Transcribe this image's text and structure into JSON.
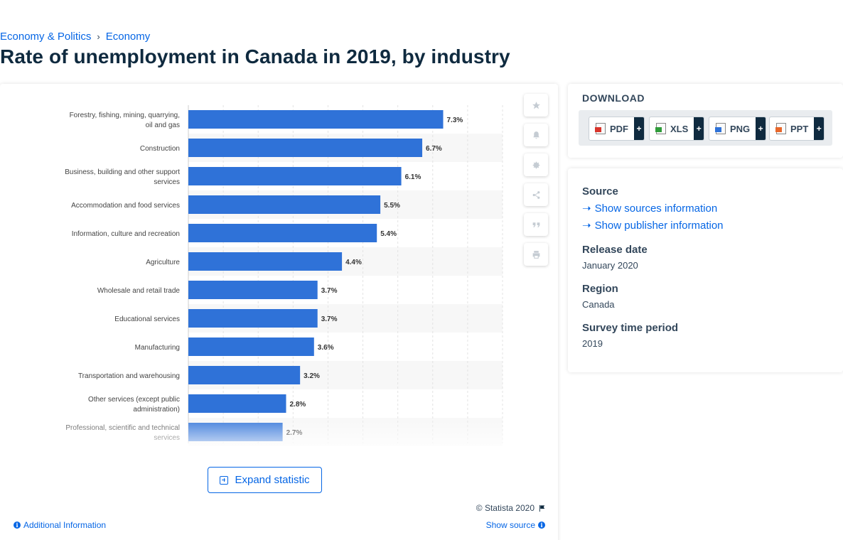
{
  "breadcrumb": {
    "items": [
      "Economy & Politics",
      "Economy"
    ],
    "separator": "›"
  },
  "page_title": "Rate of unemployment in Canada in 2019, by industry",
  "chart_data": {
    "type": "bar",
    "orientation": "horizontal",
    "categories": [
      "Forestry, fishing, mining, quarrying, oil and gas",
      "Construction",
      "Business, building and other support services",
      "Accommodation and food services",
      "Information, culture and recreation",
      "Agriculture",
      "Wholesale and retail trade",
      "Educational services",
      "Manufacturing",
      "Transportation and warehousing",
      "Other services (except public administration)",
      "Professional, scientific and technical services"
    ],
    "values": [
      7.3,
      6.7,
      6.1,
      5.5,
      5.4,
      4.4,
      3.7,
      3.7,
      3.6,
      3.2,
      2.8,
      2.7
    ],
    "value_labels": [
      "7.3%",
      "6.7%",
      "6.1%",
      "5.5%",
      "5.4%",
      "4.4%",
      "3.7%",
      "3.7%",
      "3.6%",
      "3.2%",
      "2.8%",
      "2.7%"
    ],
    "xlim": [
      0,
      9
    ],
    "bar_color": "#2f72d8",
    "grid": true
  },
  "tools": [
    "favorite-icon",
    "notification-icon",
    "settings-icon",
    "share-icon",
    "cite-icon",
    "print-icon"
  ],
  "expand_label": "Expand statistic",
  "copyright": "© Statista 2020",
  "additional_info": "Additional Information",
  "show_source": "Show source",
  "download": {
    "title": "DOWNLOAD",
    "formats": [
      {
        "label": "PDF",
        "color": "#d9342b"
      },
      {
        "label": "XLS",
        "color": "#2f9c3a"
      },
      {
        "label": "PNG",
        "color": "#2f72d8"
      },
      {
        "label": "PPT",
        "color": "#e8672a"
      }
    ],
    "plus": "+"
  },
  "source_panel": {
    "source_heading": "Source",
    "show_sources": "Show sources information",
    "show_publisher": "Show publisher information",
    "release_heading": "Release date",
    "release_value": "January 2020",
    "region_heading": "Region",
    "region_value": "Canada",
    "period_heading": "Survey time period",
    "period_value": "2019"
  },
  "colors": {
    "accent": "#0666e5",
    "bar": "#2f72d8",
    "title": "#0f2a3f"
  }
}
